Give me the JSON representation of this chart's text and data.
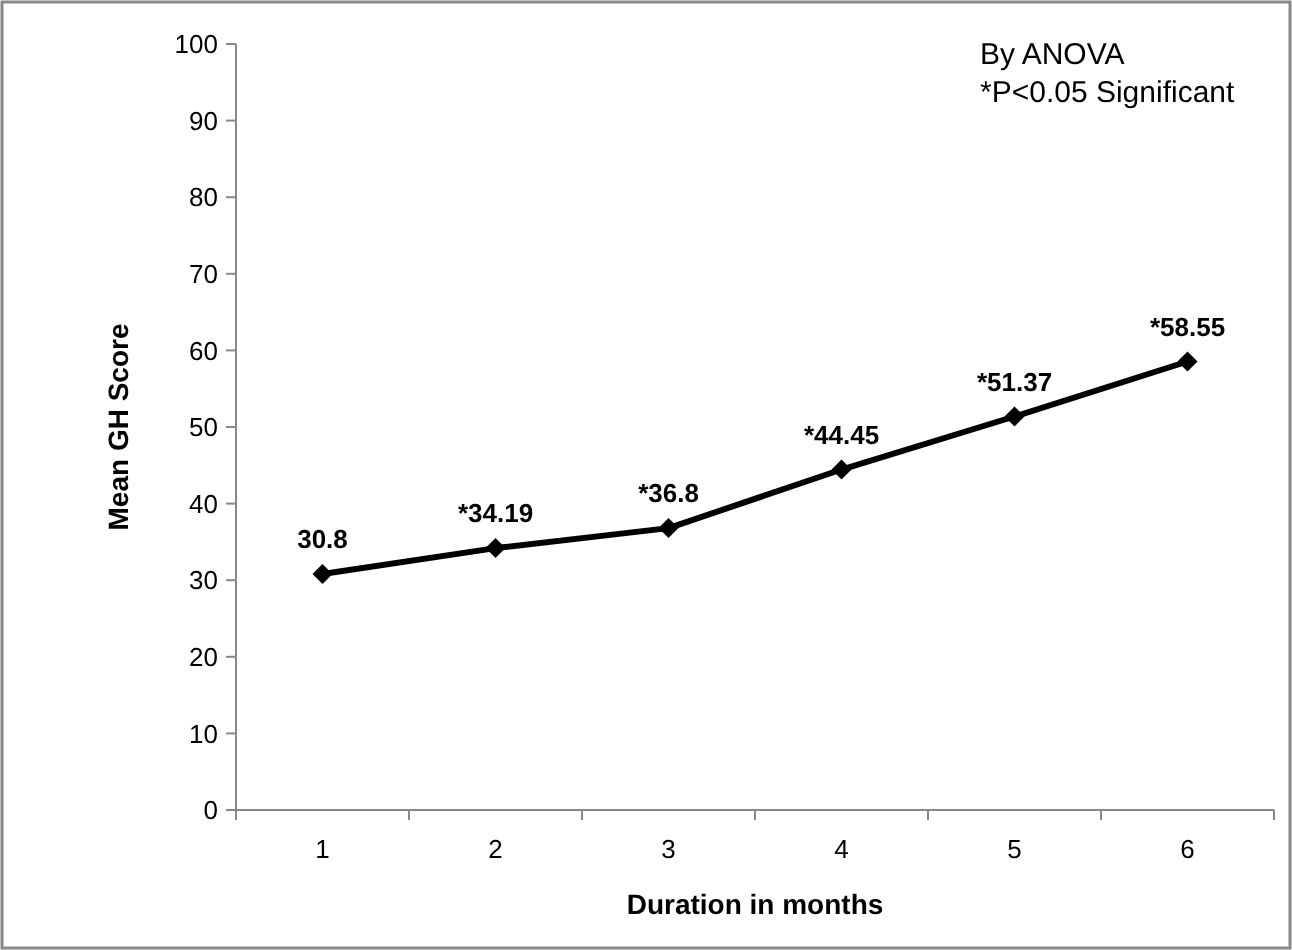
{
  "chart_data": {
    "type": "line",
    "xlabel": "Duration in months",
    "ylabel": "Mean GH Score",
    "categories": [
      "1",
      "2",
      "3",
      "4",
      "5",
      "6"
    ],
    "series": [
      {
        "color": "#000000",
        "values": [
          30.8,
          34.19,
          36.8,
          44.45,
          51.37,
          58.55
        ],
        "value_labels": [
          "30.8",
          "*34.19",
          "*36.8",
          "*44.45",
          "*51.37",
          "*58.55"
        ]
      }
    ],
    "ylim": [
      0,
      100
    ],
    "yticks": [
      0,
      10,
      20,
      30,
      40,
      50,
      60,
      70,
      80,
      90,
      100
    ],
    "annotations": [
      "By ANOVA",
      "*P<0.05 Significant"
    ],
    "marker": "diamond",
    "line_style": "solid",
    "grid": false
  }
}
